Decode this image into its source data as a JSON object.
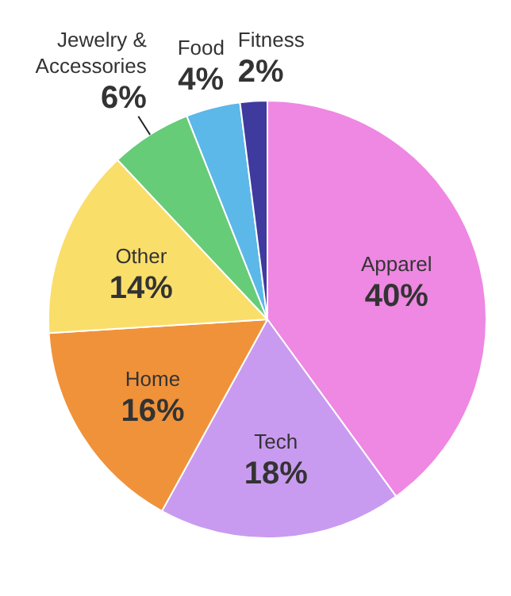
{
  "chart_data": {
    "type": "pie",
    "categories": [
      "Apparel",
      "Tech",
      "Home",
      "Other",
      "Jewelry &\nAccessories",
      "Food",
      "Fitness"
    ],
    "values": [
      40,
      18,
      16,
      14,
      6,
      4,
      2
    ],
    "value_labels": [
      "40%",
      "18%",
      "16%",
      "14%",
      "6%",
      "4%",
      "2%"
    ],
    "colors": [
      "#ee88e2",
      "#c99bf0",
      "#f0923a",
      "#fade6a",
      "#66cc77",
      "#5bb8e8",
      "#3f3a9e"
    ]
  }
}
